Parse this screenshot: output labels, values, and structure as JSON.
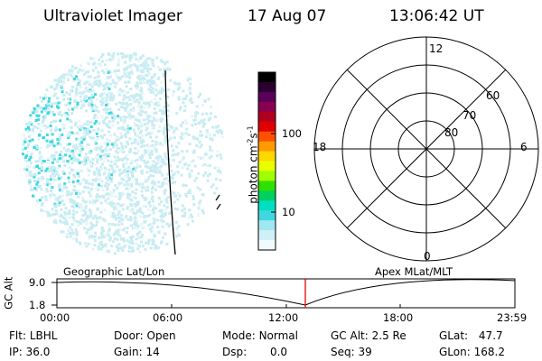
{
  "header": {
    "instrument": "Ultraviolet Imager",
    "date": "17 Aug 07",
    "time": "13:06:42 UT"
  },
  "colorbar": {
    "label_main": "photon cm",
    "label_exp1": "-2",
    "label_mid": "s",
    "label_exp2": "-1",
    "ticks": [
      "100",
      "10"
    ],
    "colors": [
      "#000000",
      "#2a0030",
      "#5a005a",
      "#8a0050",
      "#b00020",
      "#e00000",
      "#ff5000",
      "#ff9a00",
      "#ffd800",
      "#e8ff00",
      "#a0ff00",
      "#30e000",
      "#00d060",
      "#00e0c0",
      "#40d8e0",
      "#a0e8f0",
      "#d0f0f8",
      "#f0fbff"
    ]
  },
  "polar": {
    "labels_mlt": [
      "12",
      "18",
      "6",
      "0"
    ],
    "labels_lat": [
      "60",
      "70",
      "80"
    ]
  },
  "timeline": {
    "left_title": "Geographic Lat/Lon",
    "right_title": "Apex MLat/MLT",
    "ylabel": "GC Alt",
    "yticks": [
      "9.0",
      "1.8"
    ],
    "xticks": [
      "00:00",
      "06:00",
      "12:00",
      "18:00",
      "23:59"
    ],
    "marker_color": "#e00000"
  },
  "info": {
    "row1": [
      {
        "key": "Flt:",
        "value": "LBHL"
      },
      {
        "key": "Door:",
        "value": "Open"
      },
      {
        "key": "Mode:",
        "value": "Normal"
      },
      {
        "key": "GC Alt:",
        "value": "2.5 Re"
      },
      {
        "key": "GLat:",
        "value": "47.7"
      }
    ],
    "row2": [
      {
        "key": "IP:",
        "value": "36.0"
      },
      {
        "key": "Gain:",
        "value": "14"
      },
      {
        "key": "Dsp:",
        "value": "0.0"
      },
      {
        "key": "Seq:",
        "value": "39"
      },
      {
        "key": "GLon:",
        "value": "168.2"
      }
    ]
  }
}
